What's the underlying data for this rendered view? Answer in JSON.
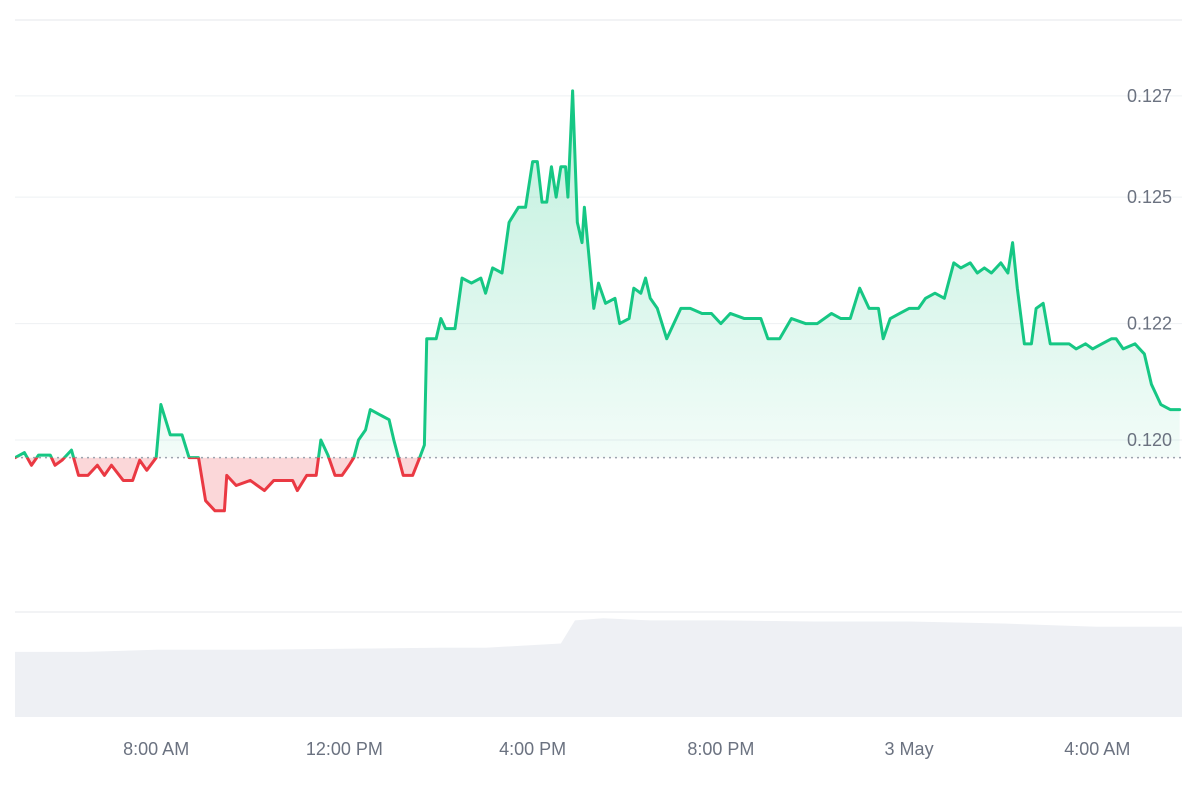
{
  "chart_data": {
    "type": "line",
    "title": "",
    "xlabel": "",
    "ylabel": "",
    "x_unit": "hours",
    "x_start": "2 May 05:00",
    "xlim": [
      5.0,
      29.8
    ],
    "ylim": [
      0.1168,
      0.1285
    ],
    "baseline": 0.11985,
    "grid": true,
    "y_axis_position": "right",
    "y_ticks": [
      {
        "value": 0.127,
        "label": "0.127"
      },
      {
        "value": 0.125,
        "label": "0.125"
      },
      {
        "value": 0.1225,
        "label": "0.122"
      },
      {
        "value": 0.1202,
        "label": "0.120"
      }
    ],
    "x_ticks": [
      {
        "value": 8,
        "label": "8:00 AM"
      },
      {
        "value": 12,
        "label": "12:00 PM"
      },
      {
        "value": 16,
        "label": "4:00 PM"
      },
      {
        "value": 20,
        "label": "8:00 PM"
      },
      {
        "value": 24,
        "label": "3 May"
      },
      {
        "value": 28,
        "label": "4:00 AM"
      }
    ],
    "colors": {
      "up_line": "#16c784",
      "up_fill": "#16c784",
      "down_line": "#ea3943",
      "down_fill": "#ea3943",
      "baseline": "#9ca3af",
      "volume": "#eef0f4"
    },
    "series": [
      {
        "values": [
          [
            5.0,
            0.11985
          ],
          [
            5.2,
            0.11995
          ],
          [
            5.35,
            0.1197
          ],
          [
            5.5,
            0.1199
          ],
          [
            5.75,
            0.1199
          ],
          [
            5.85,
            0.1197
          ],
          [
            6.0,
            0.1198
          ],
          [
            6.2,
            0.12
          ],
          [
            6.35,
            0.1195
          ],
          [
            6.55,
            0.1195
          ],
          [
            6.75,
            0.1197
          ],
          [
            6.9,
            0.1195
          ],
          [
            7.05,
            0.1197
          ],
          [
            7.3,
            0.1194
          ],
          [
            7.5,
            0.1194
          ],
          [
            7.65,
            0.1198
          ],
          [
            7.8,
            0.1196
          ],
          [
            8.0,
            0.11985
          ],
          [
            8.1,
            0.1209
          ],
          [
            8.3,
            0.1203
          ],
          [
            8.55,
            0.1203
          ],
          [
            8.7,
            0.11985
          ],
          [
            8.9,
            0.11985
          ],
          [
            9.05,
            0.119
          ],
          [
            9.25,
            0.1188
          ],
          [
            9.45,
            0.1188
          ],
          [
            9.5,
            0.1195
          ],
          [
            9.7,
            0.1193
          ],
          [
            10.0,
            0.1194
          ],
          [
            10.3,
            0.1192
          ],
          [
            10.5,
            0.1194
          ],
          [
            10.9,
            0.1194
          ],
          [
            11.0,
            0.1192
          ],
          [
            11.2,
            0.1195
          ],
          [
            11.4,
            0.1195
          ],
          [
            11.5,
            0.1202
          ],
          [
            11.65,
            0.1199
          ],
          [
            11.8,
            0.1195
          ],
          [
            11.95,
            0.1195
          ],
          [
            12.1,
            0.1197
          ],
          [
            12.2,
            0.11985
          ],
          [
            12.3,
            0.1202
          ],
          [
            12.45,
            0.1204
          ],
          [
            12.55,
            0.1208
          ],
          [
            12.75,
            0.1207
          ],
          [
            12.95,
            0.1206
          ],
          [
            13.05,
            0.1202
          ],
          [
            13.15,
            0.11985
          ],
          [
            13.25,
            0.1195
          ],
          [
            13.45,
            0.1195
          ],
          [
            13.6,
            0.11985
          ],
          [
            13.7,
            0.1201
          ],
          [
            13.75,
            0.1222
          ],
          [
            13.95,
            0.1222
          ],
          [
            14.05,
            0.1226
          ],
          [
            14.15,
            0.1224
          ],
          [
            14.35,
            0.1224
          ],
          [
            14.5,
            0.1234
          ],
          [
            14.7,
            0.1233
          ],
          [
            14.9,
            0.1234
          ],
          [
            15.0,
            0.1231
          ],
          [
            15.15,
            0.1236
          ],
          [
            15.35,
            0.1235
          ],
          [
            15.5,
            0.1245
          ],
          [
            15.7,
            0.1248
          ],
          [
            15.85,
            0.1248
          ],
          [
            16.0,
            0.1257
          ],
          [
            16.1,
            0.1257
          ],
          [
            16.2,
            0.1249
          ],
          [
            16.3,
            0.1249
          ],
          [
            16.4,
            0.1256
          ],
          [
            16.5,
            0.125
          ],
          [
            16.6,
            0.1256
          ],
          [
            16.7,
            0.1256
          ],
          [
            16.75,
            0.125
          ],
          [
            16.85,
            0.1271
          ],
          [
            16.95,
            0.1245
          ],
          [
            17.05,
            0.1241
          ],
          [
            17.1,
            0.1248
          ],
          [
            17.3,
            0.1228
          ],
          [
            17.4,
            0.1233
          ],
          [
            17.55,
            0.1229
          ],
          [
            17.75,
            0.123
          ],
          [
            17.85,
            0.1225
          ],
          [
            18.05,
            0.1226
          ],
          [
            18.15,
            0.1232
          ],
          [
            18.3,
            0.1231
          ],
          [
            18.4,
            0.1234
          ],
          [
            18.5,
            0.123
          ],
          [
            18.65,
            0.1228
          ],
          [
            18.85,
            0.1222
          ],
          [
            19.15,
            0.1228
          ],
          [
            19.35,
            0.1228
          ],
          [
            19.6,
            0.1227
          ],
          [
            19.8,
            0.1227
          ],
          [
            20.0,
            0.1225
          ],
          [
            20.2,
            0.1227
          ],
          [
            20.5,
            0.1226
          ],
          [
            20.85,
            0.1226
          ],
          [
            21.0,
            0.1222
          ],
          [
            21.25,
            0.1222
          ],
          [
            21.5,
            0.1226
          ],
          [
            21.8,
            0.1225
          ],
          [
            22.05,
            0.1225
          ],
          [
            22.35,
            0.1227
          ],
          [
            22.55,
            0.1226
          ],
          [
            22.75,
            0.1226
          ],
          [
            22.95,
            0.1232
          ],
          [
            23.15,
            0.1228
          ],
          [
            23.35,
            0.1228
          ],
          [
            23.45,
            0.1222
          ],
          [
            23.6,
            0.1226
          ],
          [
            23.8,
            0.1227
          ],
          [
            24.0,
            0.1228
          ],
          [
            24.2,
            0.1228
          ],
          [
            24.35,
            0.123
          ],
          [
            24.55,
            0.1231
          ],
          [
            24.75,
            0.123
          ],
          [
            24.95,
            0.1237
          ],
          [
            25.1,
            0.1236
          ],
          [
            25.3,
            0.1237
          ],
          [
            25.45,
            0.1235
          ],
          [
            25.6,
            0.1236
          ],
          [
            25.75,
            0.1235
          ],
          [
            25.95,
            0.1237
          ],
          [
            26.1,
            0.1235
          ],
          [
            26.2,
            0.1241
          ],
          [
            26.3,
            0.1232
          ],
          [
            26.45,
            0.1221
          ],
          [
            26.6,
            0.1221
          ],
          [
            26.7,
            0.1228
          ],
          [
            26.85,
            0.1229
          ],
          [
            27.0,
            0.1221
          ],
          [
            27.2,
            0.1221
          ],
          [
            27.4,
            0.1221
          ],
          [
            27.55,
            0.122
          ],
          [
            27.75,
            0.1221
          ],
          [
            27.9,
            0.122
          ],
          [
            28.1,
            0.1221
          ],
          [
            28.3,
            0.1222
          ],
          [
            28.4,
            0.1222
          ],
          [
            28.55,
            0.122
          ],
          [
            28.8,
            0.1221
          ],
          [
            29.0,
            0.1219
          ],
          [
            29.15,
            0.1213
          ],
          [
            29.25,
            0.1211
          ],
          [
            29.35,
            0.1209
          ],
          [
            29.55,
            0.1208
          ],
          [
            29.75,
            0.1208
          ]
        ]
      }
    ],
    "volume": {
      "ylim": [
        0,
        1
      ],
      "values": [
        [
          5.0,
          0.62
        ],
        [
          6.5,
          0.62
        ],
        [
          8.0,
          0.64
        ],
        [
          10.0,
          0.64
        ],
        [
          12.0,
          0.65
        ],
        [
          14.0,
          0.66
        ],
        [
          15.0,
          0.66
        ],
        [
          16.6,
          0.7
        ],
        [
          16.9,
          0.92
        ],
        [
          17.5,
          0.94
        ],
        [
          18.5,
          0.92
        ],
        [
          20.0,
          0.92
        ],
        [
          22.0,
          0.91
        ],
        [
          24.0,
          0.91
        ],
        [
          26.0,
          0.89
        ],
        [
          28.0,
          0.86
        ],
        [
          29.8,
          0.86
        ]
      ]
    }
  }
}
